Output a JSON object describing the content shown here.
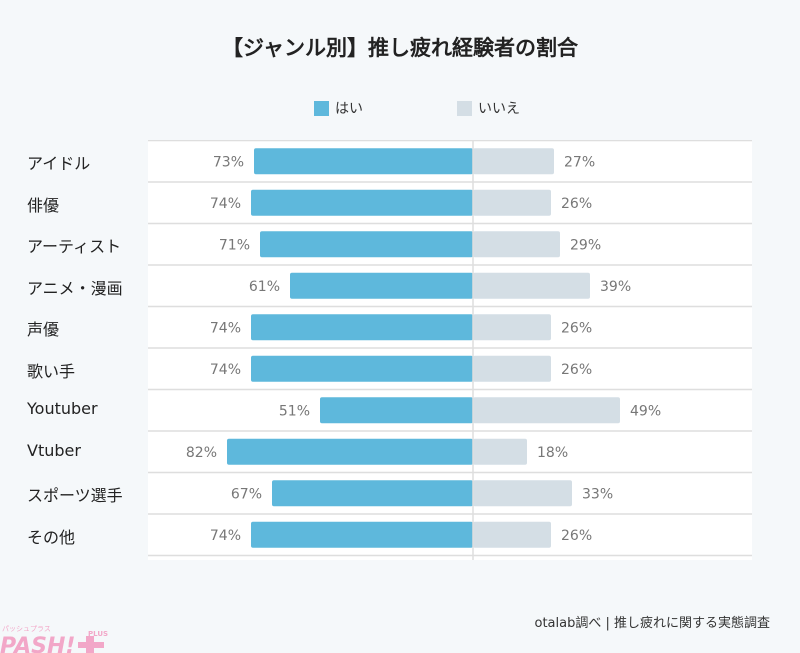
{
  "chart_data": {
    "type": "bar",
    "orientation": "horizontal-diverging",
    "title": "【ジャンル別】推し疲れ経験者の割合",
    "categories": [
      "アイドル",
      "俳優",
      "アーティスト",
      "アニメ・漫画",
      "声優",
      "歌い手",
      "Youtuber",
      "Vtuber",
      "スポーツ選手",
      "その他"
    ],
    "series": [
      {
        "name": "はい",
        "color": "#5eb8dc",
        "values": [
          73,
          74,
          71,
          61,
          74,
          74,
          51,
          82,
          67,
          74
        ]
      },
      {
        "name": "いいえ",
        "color": "#d4dee5",
        "values": [
          27,
          26,
          29,
          39,
          26,
          26,
          49,
          18,
          33,
          26
        ]
      }
    ],
    "unit": "%",
    "legend_position": "top",
    "grid": "horizontal row separators"
  },
  "source": "otalab調べ | 推し疲れに関する実態調査",
  "logo": {
    "text": "PASH!+",
    "sub": "PLUS",
    "kana": "パッシュプラス",
    "color": "#f2a7c8"
  }
}
